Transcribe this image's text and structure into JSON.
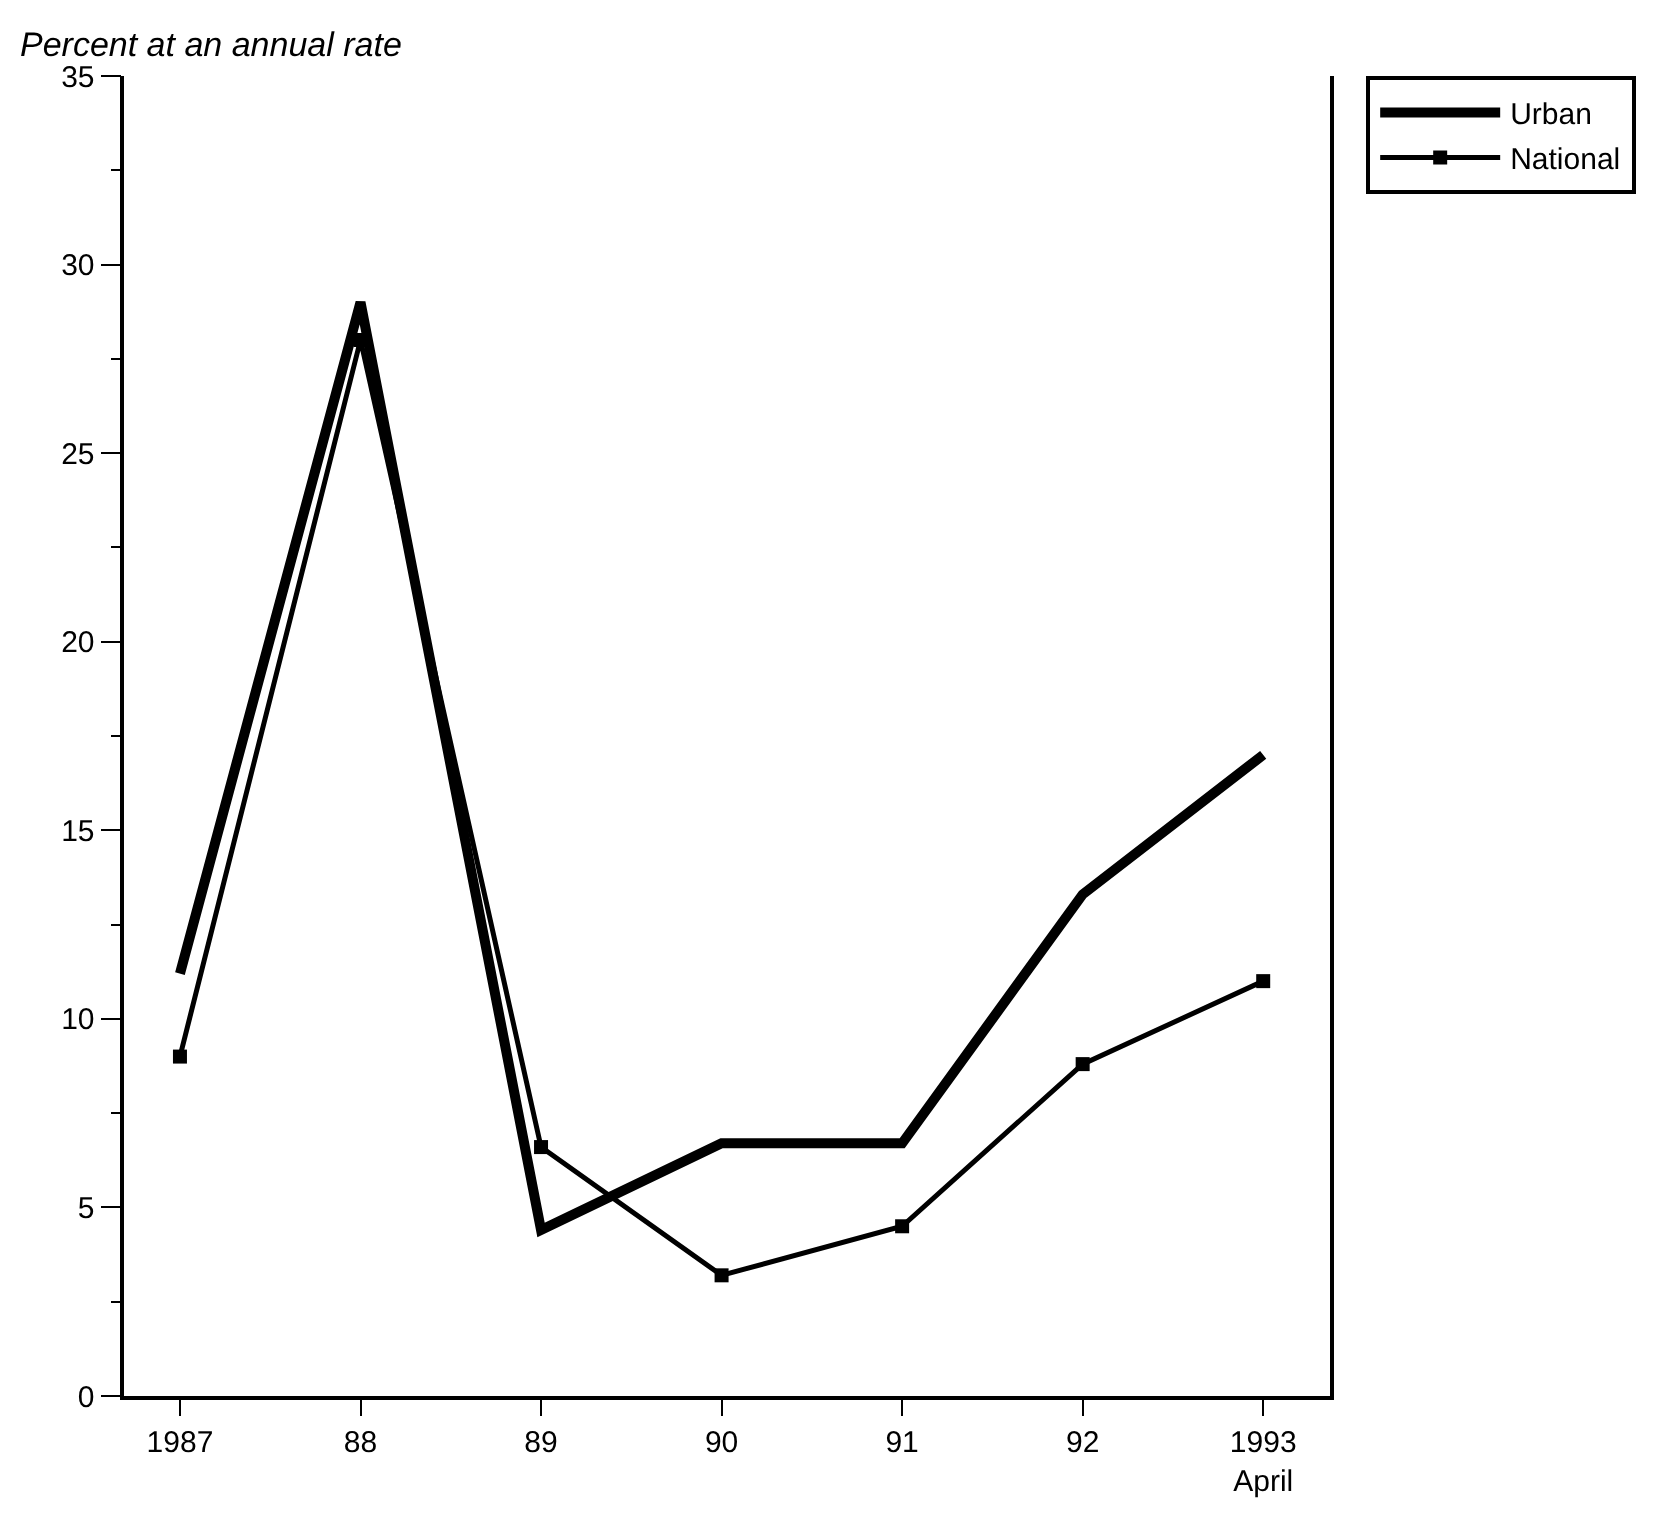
{
  "chart_data": {
    "type": "line",
    "ylabel": "Percent at an annual rate",
    "categories": [
      "1987",
      "88",
      "89",
      "90",
      "91",
      "92",
      "1993\nApril"
    ],
    "series": [
      {
        "name": "Urban",
        "color": "#000000",
        "marker": "none",
        "values": [
          11.2,
          29.0,
          4.4,
          6.7,
          6.7,
          13.3,
          17.0
        ]
      },
      {
        "name": "National",
        "color": "#000000",
        "marker": "square",
        "values": [
          9.0,
          28.0,
          6.6,
          3.2,
          4.5,
          8.8,
          11.0
        ]
      }
    ],
    "ylim": [
      0,
      35
    ],
    "yticks": [
      0,
      5,
      10,
      15,
      20,
      25,
      30,
      35
    ],
    "legend": "top right"
  }
}
